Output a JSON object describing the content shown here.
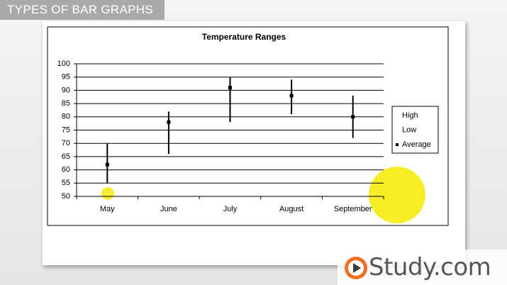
{
  "header": {
    "title": "TYPES OF BAR GRAPHS"
  },
  "logo": {
    "text": "Study.com"
  },
  "chart_data": {
    "type": "high-low",
    "title": "Temperature Ranges",
    "categories": [
      "May",
      "June",
      "July",
      "August",
      "September"
    ],
    "series": [
      {
        "name": "High",
        "color": "#000000",
        "values": [
          70,
          82,
          95,
          94,
          88
        ]
      },
      {
        "name": "Low",
        "color": "#000000",
        "values": [
          55,
          66,
          78,
          81,
          72
        ]
      },
      {
        "name": "Average",
        "color": "#000000",
        "values": [
          62,
          78,
          91,
          88,
          80
        ]
      }
    ],
    "ylim": [
      50,
      100
    ],
    "yticks": [
      50,
      55,
      60,
      65,
      70,
      75,
      80,
      85,
      90,
      95,
      100
    ],
    "grid": true,
    "legend": "right"
  }
}
